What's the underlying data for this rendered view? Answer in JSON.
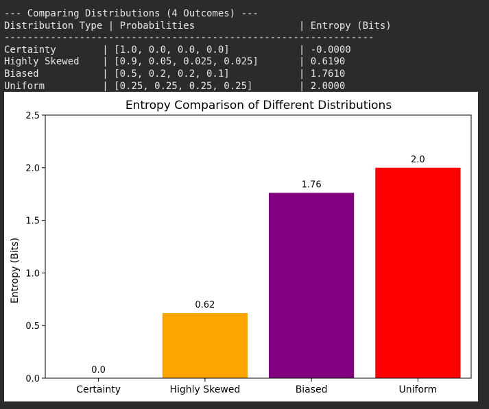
{
  "console": {
    "header": "--- Comparing Distributions (4 Outcomes) ---",
    "columns": "Distribution Type | Probabilities                  | Entropy (Bits)",
    "divider": "----------------------------------------------------------------",
    "rows": [
      "Certainty        | [1.0, 0.0, 0.0, 0.0]            | -0.0000",
      "Highly Skewed    | [0.9, 0.05, 0.025, 0.025]       | 0.6190",
      "Biased           | [0.5, 0.2, 0.2, 0.1]            | 1.7610",
      "Uniform          | [0.25, 0.25, 0.25, 0.25]        | 2.0000"
    ]
  },
  "chart_data": {
    "type": "bar",
    "title": "Entropy Comparison of Different Distributions",
    "xlabel": "",
    "ylabel": "Entropy (Bits)",
    "categories": [
      "Certainty",
      "Highly Skewed",
      "Biased",
      "Uniform"
    ],
    "values": [
      0.0,
      0.619,
      1.761,
      2.0
    ],
    "data_labels": [
      "0.0",
      "0.62",
      "1.76",
      "2.0"
    ],
    "colors": [
      "#1f77b4",
      "#ffa500",
      "#800080",
      "#ff0000"
    ],
    "ylim": [
      0,
      2.5
    ],
    "yticks": [
      0.0,
      0.5,
      1.0,
      1.5,
      2.0,
      2.5
    ],
    "ytick_labels": [
      "0.0",
      "0.5",
      "1.0",
      "1.5",
      "2.0",
      "2.5"
    ],
    "grid": false,
    "legend": "none"
  }
}
